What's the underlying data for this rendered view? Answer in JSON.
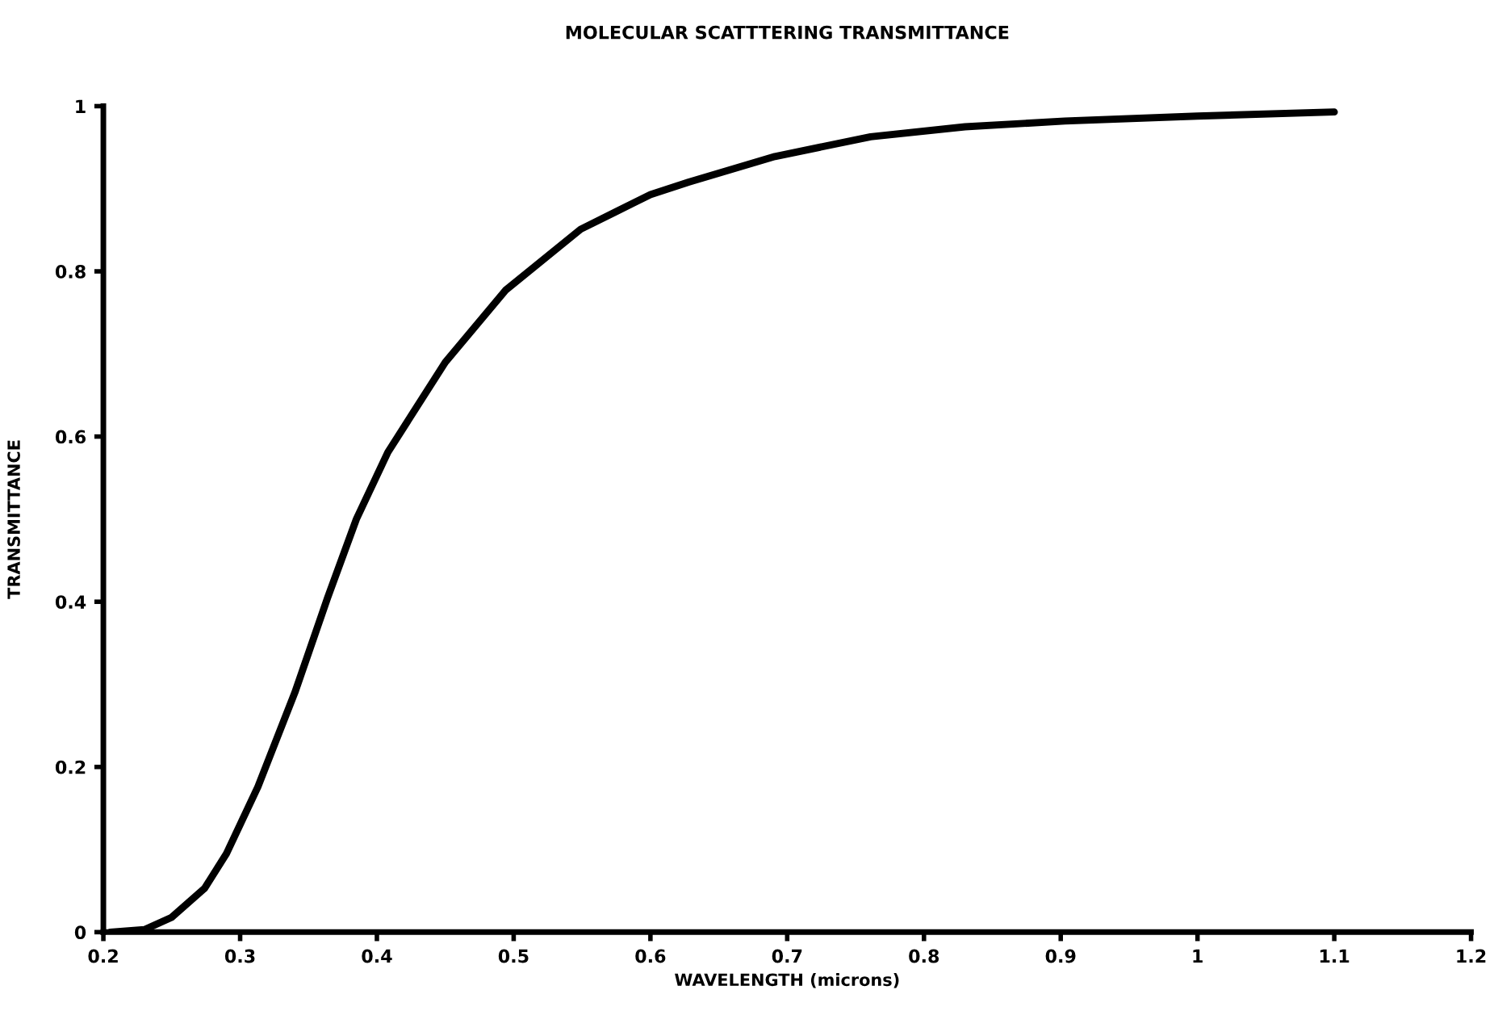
{
  "chart_data": {
    "type": "line",
    "title": "MOLECULAR SCATTTERING TRANSMITTANCE",
    "xlabel": "WAVELENGTH (microns)",
    "ylabel": "TRANSMITTANCE",
    "series": [
      {
        "color": "#000000",
        "x": [
          0.205,
          0.23,
          0.25,
          0.274,
          0.29,
          0.313,
          0.34,
          0.364,
          0.385,
          0.408,
          0.45,
          0.494,
          0.549,
          0.6,
          0.628,
          0.691,
          0.761,
          0.83,
          0.903,
          1.0,
          1.1
        ],
        "values": [
          0,
          0.003,
          0.018,
          0.053,
          0.095,
          0.176,
          0.29,
          0.405,
          0.5,
          0.581,
          0.69,
          0.777,
          0.851,
          0.893,
          0.908,
          0.939,
          0.963,
          0.975,
          0.982,
          0.988,
          0.993
        ]
      }
    ],
    "xlim": [
      0.2,
      1.2
    ],
    "xticks": [
      0.2,
      0.3,
      0.4,
      0.5,
      0.6,
      0.7,
      0.8,
      0.9,
      1,
      1.1,
      1.2
    ],
    "ylim": [
      0,
      1
    ],
    "yticks": [
      0,
      0.2,
      0.4,
      0.6,
      0.8,
      1
    ],
    "grid": false,
    "marker": "none",
    "line_style": "solid"
  }
}
